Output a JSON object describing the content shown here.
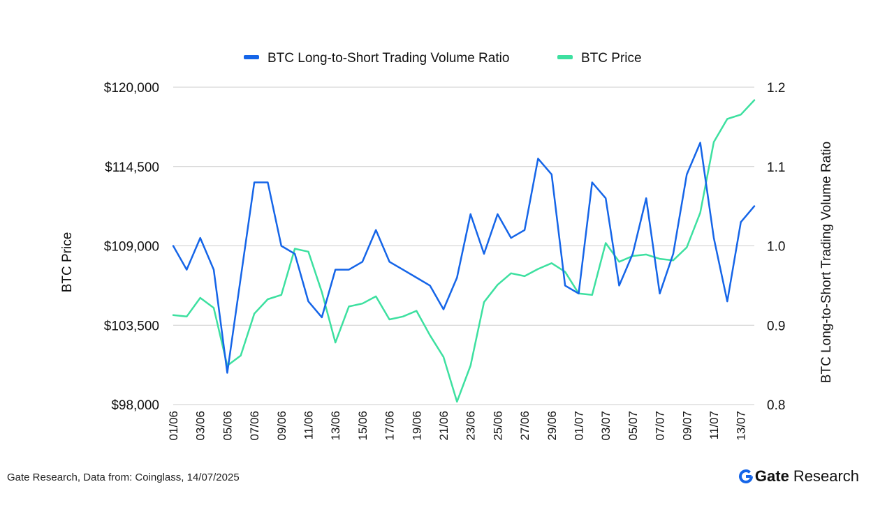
{
  "chart_data": {
    "type": "line",
    "categories": [
      "01/06",
      "02/06",
      "03/06",
      "04/06",
      "05/06",
      "06/06",
      "07/06",
      "08/06",
      "09/06",
      "10/06",
      "11/06",
      "12/06",
      "13/06",
      "14/06",
      "15/06",
      "16/06",
      "17/06",
      "18/06",
      "19/06",
      "20/06",
      "21/06",
      "22/06",
      "23/06",
      "24/06",
      "25/06",
      "26/06",
      "27/06",
      "28/06",
      "29/06",
      "30/06",
      "01/07",
      "02/07",
      "03/07",
      "04/07",
      "05/07",
      "06/07",
      "07/07",
      "08/07",
      "09/07",
      "10/07",
      "11/07",
      "12/07",
      "13/07",
      "14/07"
    ],
    "x_tick_labels": [
      "01/06",
      "03/06",
      "05/06",
      "07/06",
      "09/06",
      "11/06",
      "13/06",
      "15/06",
      "17/06",
      "19/06",
      "21/06",
      "23/06",
      "25/06",
      "27/06",
      "29/06",
      "01/07",
      "03/07",
      "05/07",
      "07/07",
      "09/07",
      "11/07",
      "13/07"
    ],
    "series": [
      {
        "name": "BTC Long-to-Short Trading Volume Ratio",
        "axis": "right",
        "color": "#1565E8",
        "values": [
          1.0,
          0.97,
          1.01,
          0.97,
          0.84,
          0.96,
          1.08,
          1.08,
          1.0,
          0.99,
          0.93,
          0.91,
          0.97,
          0.97,
          0.98,
          1.02,
          0.98,
          0.97,
          0.96,
          0.95,
          0.92,
          0.96,
          1.04,
          0.99,
          1.04,
          1.01,
          1.02,
          1.11,
          1.09,
          0.95,
          0.94,
          1.08,
          1.06,
          0.95,
          0.99,
          1.06,
          0.94,
          0.99,
          1.09,
          1.13,
          1.01,
          0.93,
          1.03,
          1.05
        ]
      },
      {
        "name": "BTC Price",
        "axis": "left",
        "color": "#3DE0A0",
        "values": [
          104200,
          104100,
          105400,
          104700,
          100700,
          101400,
          104300,
          105300,
          105600,
          108800,
          108600,
          105800,
          102300,
          104800,
          105000,
          105500,
          103900,
          104100,
          104500,
          102800,
          101300,
          98200,
          100700,
          105100,
          106300,
          107100,
          106900,
          107400,
          107800,
          107200,
          105700,
          105600,
          109200,
          107900,
          108300,
          108400,
          108100,
          108000,
          108900,
          111300,
          116200,
          117800,
          118100,
          119100
        ]
      }
    ],
    "ylabel": "BTC Price",
    "ylabel_right": "BTC Long-to-Short Trading Volume Ratio",
    "ylim": [
      98000,
      120000
    ],
    "ylim_right": [
      0.8,
      1.2
    ],
    "y_ticks": [
      "$98,000",
      "$103,500",
      "$109,000",
      "$114,500",
      "$120,000"
    ],
    "y_ticks_right": [
      "0.8",
      "0.9",
      "1.0",
      "1.1",
      "1.2"
    ],
    "grid": true,
    "legend": "top-center"
  },
  "footer": {
    "source": "Gate Research, Data from: Coinglass, 14/07/2025",
    "brand_name": "Gate",
    "brand_suffix": "Research"
  }
}
